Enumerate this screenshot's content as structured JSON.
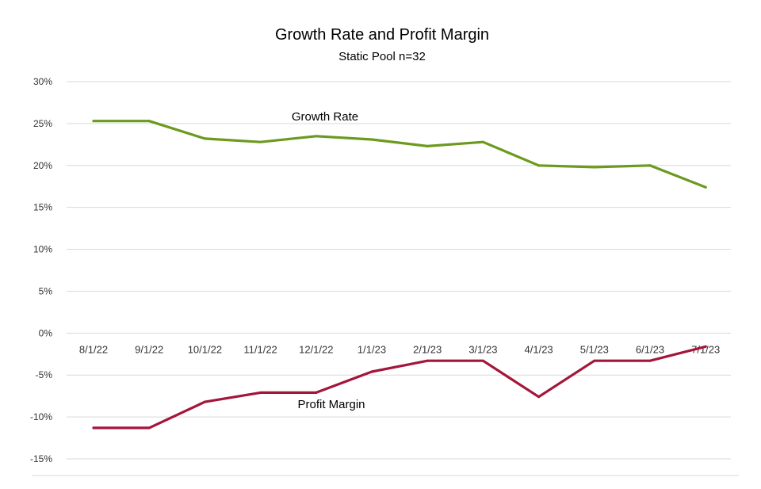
{
  "chart_data": {
    "type": "line",
    "title": "Growth Rate and Profit Margin",
    "subtitle": "Static Pool n=32",
    "categories": [
      "8/1/22",
      "9/1/22",
      "10/1/22",
      "11/1/22",
      "12/1/22",
      "1/1/23",
      "2/1/23",
      "3/1/23",
      "4/1/23",
      "5/1/23",
      "6/1/23",
      "7/1/23"
    ],
    "y_ticks": [
      "30%",
      "25%",
      "20%",
      "15%",
      "10%",
      "5%",
      "0%",
      "-5%",
      "-10%",
      "-15%"
    ],
    "ylim": [
      -15,
      30
    ],
    "y_unit": "%",
    "grid": true,
    "series": [
      {
        "name": "Growth Rate",
        "color": "#6b9a1f",
        "values": [
          25.3,
          25.3,
          23.2,
          22.8,
          23.5,
          23.1,
          22.3,
          22.8,
          20.0,
          19.8,
          20.0,
          17.4
        ]
      },
      {
        "name": "Profit Margin",
        "color": "#a3163a",
        "values": [
          -11.3,
          -11.3,
          -8.2,
          -7.1,
          -7.1,
          -4.6,
          -3.3,
          -3.3,
          -7.6,
          -3.3,
          -3.3,
          -1.6
        ]
      }
    ]
  }
}
